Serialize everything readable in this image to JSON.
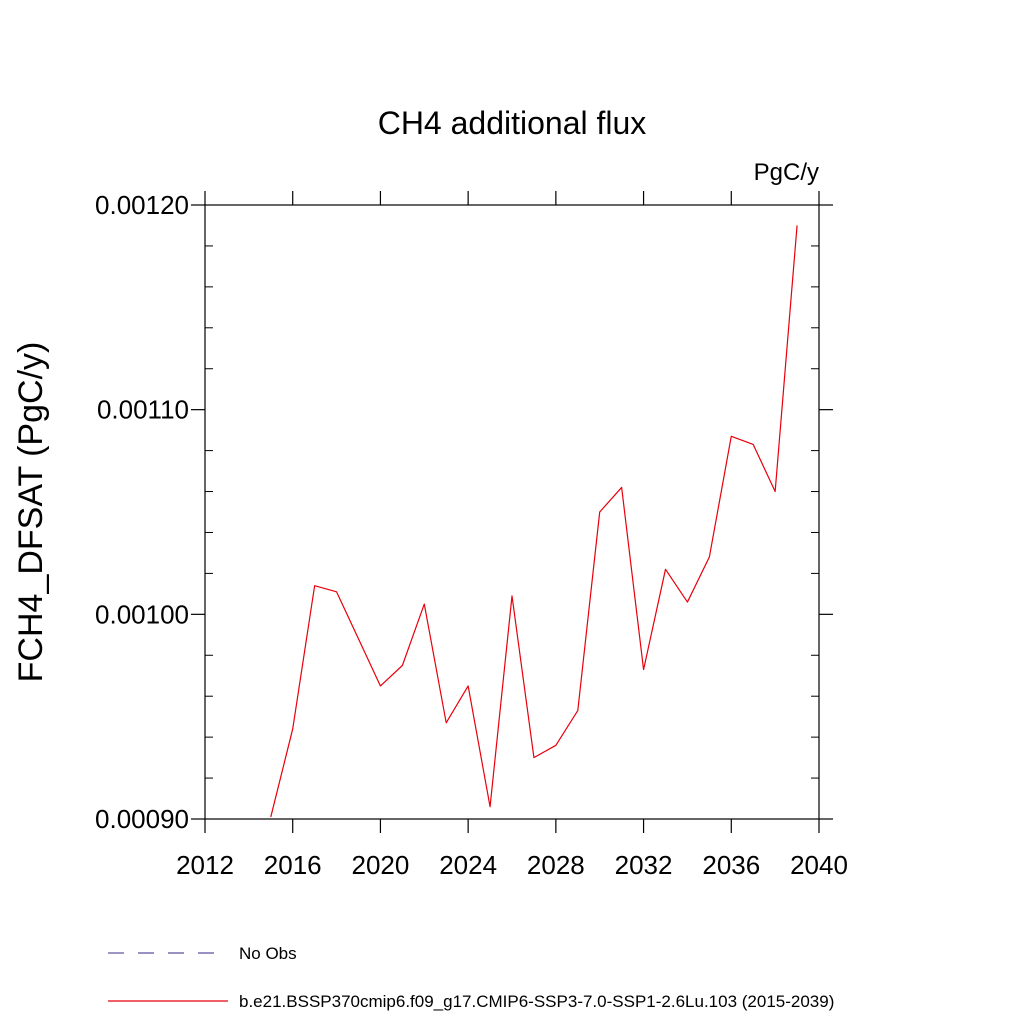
{
  "chart_data": {
    "type": "line",
    "title": "CH4 additional flux",
    "units": "PgC/y",
    "xlabel": "",
    "ylabel": "FCH4_DFSAT  (PgC/y)",
    "xlim": [
      2012,
      2040
    ],
    "ylim": [
      0.0009,
      0.0012
    ],
    "xticks": [
      2012,
      2016,
      2020,
      2024,
      2028,
      2032,
      2036,
      2040
    ],
    "xtick_labels": [
      "2012",
      "2016",
      "2020",
      "2024",
      "2028",
      "2032",
      "2036",
      "2040"
    ],
    "yticks": [
      0.0009,
      0.001,
      0.0011,
      0.0012
    ],
    "ytick_labels": [
      "0.00090",
      "0.00100",
      "0.00110",
      "0.00120"
    ],
    "grid": false,
    "legend_position": "bottom",
    "series": [
      {
        "name": "No Obs",
        "color": "#5a4fa0",
        "dash": "dashed",
        "x": [],
        "y": []
      },
      {
        "name": "b.e21.BSSP370cmip6.f09_g17.CMIP6-SSP3-7.0-SSP1-2.6Lu.103 (2015-2039)",
        "color": "#e8000b",
        "dash": "solid",
        "x": [
          2015,
          2016,
          2017,
          2018,
          2019,
          2020,
          2021,
          2022,
          2023,
          2024,
          2025,
          2026,
          2027,
          2028,
          2029,
          2030,
          2031,
          2032,
          2033,
          2034,
          2035,
          2036,
          2037,
          2038,
          2039
        ],
        "y": [
          0.000901,
          0.000944,
          0.001014,
          0.001011,
          0.000988,
          0.000965,
          0.000975,
          0.001005,
          0.000947,
          0.000965,
          0.000906,
          0.001009,
          0.00093,
          0.000936,
          0.000953,
          0.00105,
          0.001062,
          0.000973,
          0.001022,
          0.001006,
          0.001028,
          0.001087,
          0.001083,
          0.00106,
          0.00119
        ]
      }
    ]
  }
}
